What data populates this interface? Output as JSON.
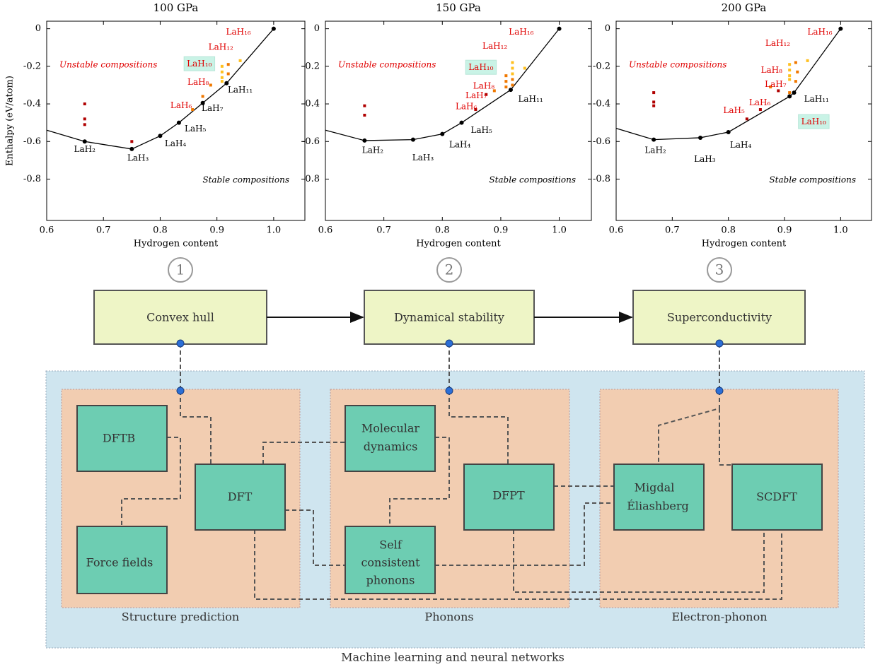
{
  "chart_data": [
    {
      "type": "scatter",
      "title": "100 GPa",
      "xlabel": "Hydrogen content",
      "ylabel": "Enthalpy (eV/atom)",
      "unstable_label": "Unstable compositions",
      "stable_label": "Stable compositions",
      "xlim": [
        0.6,
        1.055
      ],
      "ylim": [
        -1.02,
        0.04
      ],
      "xticks": [
        0.6,
        0.7,
        0.8,
        0.9,
        {
          "value": 1,
          "label": "1.0"
        }
      ],
      "yticks": [
        0,
        -0.2,
        -0.4,
        -0.6,
        -0.8
      ],
      "series": [
        {
          "kind": "line",
          "color": "#000000",
          "x": [
            0.6,
            0.667,
            0.75,
            0.8,
            0.833,
            0.875,
            0.917,
            1
          ],
          "values": [
            -0.54,
            -0.6,
            -0.64,
            -0.57,
            -0.5,
            -0.395,
            -0.29,
            0
          ]
        },
        {
          "kind": "points",
          "color": "#000000",
          "x": [
            0.667,
            0.75,
            0.8,
            0.833,
            0.875,
            0.917,
            1
          ],
          "values": [
            -0.6,
            -0.64,
            -0.57,
            -0.5,
            -0.395,
            -0.29,
            0
          ]
        },
        {
          "kind": "squares",
          "color": "#b00000",
          "x": [
            0.667,
            0.667,
            0.667,
            0.75
          ],
          "values": [
            -0.4,
            -0.48,
            -0.51,
            -0.6
          ]
        },
        {
          "kind": "squares",
          "color": "#f07800",
          "x": [
            0.857,
            0.875,
            0.889,
            0.92,
            0.92
          ],
          "values": [
            -0.43,
            -0.36,
            -0.3,
            -0.24,
            -0.19
          ]
        },
        {
          "kind": "squares",
          "color": "#ffc020",
          "x": [
            0.909,
            0.909,
            0.909,
            0.909,
            0.941
          ],
          "values": [
            -0.2,
            -0.23,
            -0.26,
            -0.28,
            -0.17
          ]
        }
      ],
      "annotations": [
        {
          "text": "LaH₂",
          "x": 0.667,
          "y": -0.643,
          "color": "#000000"
        },
        {
          "text": "LaH₃",
          "x": 0.761,
          "y": -0.69,
          "color": "#000000"
        },
        {
          "text": "LaH₄",
          "x": 0.827,
          "y": -0.613,
          "color": "#000000"
        },
        {
          "text": "LaH₅",
          "x": 0.862,
          "y": -0.534,
          "color": "#000000"
        },
        {
          "text": "LaH₇",
          "x": 0.892,
          "y": -0.425,
          "color": "#000000"
        },
        {
          "text": "LaH₁₁",
          "x": 0.941,
          "y": -0.327,
          "color": "#000000"
        },
        {
          "text": "LaH₆",
          "x": 0.837,
          "y": -0.41,
          "color": "#e00000"
        },
        {
          "text": "LaH₈",
          "x": 0.867,
          "y": -0.286,
          "color": "#e00000"
        },
        {
          "text": "LaH₁₀",
          "x": 0.869,
          "y": -0.188,
          "color": "#e00000",
          "box": "#c9f3e6"
        },
        {
          "text": "LaH₁₂",
          "x": 0.907,
          "y": -0.1,
          "color": "#e00000"
        },
        {
          "text": "LaH₁₆",
          "x": 0.938,
          "y": -0.019,
          "color": "#e00000"
        }
      ]
    },
    {
      "type": "scatter",
      "title": "150 GPa",
      "xlabel": "Hydrogen content",
      "unstable_label": "Unstable compositions",
      "stable_label": "Stable compositions",
      "xlim": [
        0.6,
        1.055
      ],
      "ylim": [
        -1.02,
        0.04
      ],
      "xticks": [
        0.6,
        0.7,
        0.8,
        0.9,
        {
          "value": 1,
          "label": "1.0"
        }
      ],
      "yticks": [
        0,
        -0.2,
        -0.4,
        -0.6,
        -0.8
      ],
      "series": [
        {
          "kind": "line",
          "color": "#000000",
          "x": [
            0.6,
            0.667,
            0.75,
            0.8,
            0.833,
            0.917,
            1
          ],
          "values": [
            -0.54,
            -0.595,
            -0.59,
            -0.56,
            -0.5,
            -0.325,
            0
          ]
        },
        {
          "kind": "points",
          "color": "#000000",
          "x": [
            0.667,
            0.75,
            0.8,
            0.833,
            0.917,
            1
          ],
          "values": [
            -0.595,
            -0.59,
            -0.56,
            -0.5,
            -0.325,
            0
          ]
        },
        {
          "kind": "squares",
          "color": "#b00000",
          "x": [
            0.667,
            0.667,
            0.857,
            0.875
          ],
          "values": [
            -0.41,
            -0.46,
            -0.43,
            -0.35
          ]
        },
        {
          "kind": "squares",
          "color": "#f07800",
          "x": [
            0.889,
            0.909,
            0.909,
            0.909,
            0.92,
            0.92
          ],
          "values": [
            -0.33,
            -0.25,
            -0.28,
            -0.31,
            -0.27,
            -0.3
          ]
        },
        {
          "kind": "squares",
          "color": "#ffc020",
          "x": [
            0.92,
            0.92,
            0.92,
            0.941
          ],
          "values": [
            -0.18,
            -0.21,
            -0.24,
            -0.21
          ]
        }
      ],
      "annotations": [
        {
          "text": "LaH₂",
          "x": 0.681,
          "y": -0.647,
          "color": "#000000"
        },
        {
          "text": "LaH₃",
          "x": 0.767,
          "y": -0.688,
          "color": "#000000"
        },
        {
          "text": "LaH₄",
          "x": 0.83,
          "y": -0.617,
          "color": "#000000"
        },
        {
          "text": "LaH₅",
          "x": 0.867,
          "y": -0.541,
          "color": "#000000"
        },
        {
          "text": "LaH₁₁",
          "x": 0.951,
          "y": -0.376,
          "color": "#000000"
        },
        {
          "text": "LaH₆",
          "x": 0.841,
          "y": -0.414,
          "color": "#e00000"
        },
        {
          "text": "LaH₇",
          "x": 0.858,
          "y": -0.357,
          "color": "#e00000"
        },
        {
          "text": "LaH₈",
          "x": 0.871,
          "y": -0.305,
          "color": "#e00000"
        },
        {
          "text": "LaH₁₀",
          "x": 0.866,
          "y": -0.207,
          "color": "#e00000",
          "box": "#c9f3e6"
        },
        {
          "text": "LaH₁₂",
          "x": 0.89,
          "y": -0.094,
          "color": "#e00000"
        },
        {
          "text": "LaH₁₆",
          "x": 0.935,
          "y": -0.019,
          "color": "#e00000"
        }
      ]
    },
    {
      "type": "scatter",
      "title": "200 GPa",
      "xlabel": "Hydrogen content",
      "unstable_label": "Unstable compositions",
      "stable_label": "Stable compositions",
      "xlim": [
        0.6,
        1.055
      ],
      "ylim": [
        -1.02,
        0.04
      ],
      "xticks": [
        0.6,
        0.7,
        0.8,
        0.9,
        {
          "value": 1,
          "label": "1.0"
        }
      ],
      "yticks": [
        0,
        -0.2,
        -0.4,
        -0.6,
        -0.8
      ],
      "series": [
        {
          "kind": "line",
          "color": "#000000",
          "x": [
            0.6,
            0.667,
            0.75,
            0.8,
            0.909,
            0.917,
            1
          ],
          "values": [
            -0.53,
            -0.59,
            -0.58,
            -0.55,
            -0.36,
            -0.34,
            0
          ]
        },
        {
          "kind": "points",
          "color": "#000000",
          "x": [
            0.667,
            0.75,
            0.8,
            0.909,
            0.917,
            1
          ],
          "values": [
            -0.59,
            -0.58,
            -0.55,
            -0.36,
            -0.34,
            0
          ]
        },
        {
          "kind": "squares",
          "color": "#b00000",
          "x": [
            0.667,
            0.667,
            0.667,
            0.833,
            0.857,
            0.889
          ],
          "values": [
            -0.34,
            -0.39,
            -0.41,
            -0.48,
            -0.43,
            -0.33
          ]
        },
        {
          "kind": "squares",
          "color": "#f07800",
          "x": [
            0.875,
            0.909,
            0.92,
            0.92,
            0.923
          ],
          "values": [
            -0.31,
            -0.34,
            -0.28,
            -0.18,
            -0.23
          ]
        },
        {
          "kind": "squares",
          "color": "#ffc020",
          "x": [
            0.909,
            0.909,
            0.909,
            0.909,
            0.941
          ],
          "values": [
            -0.19,
            -0.22,
            -0.25,
            -0.27,
            -0.17
          ]
        }
      ],
      "annotations": [
        {
          "text": "LaH₂",
          "x": 0.67,
          "y": -0.647,
          "color": "#000000"
        },
        {
          "text": "LaH₃",
          "x": 0.758,
          "y": -0.695,
          "color": "#000000"
        },
        {
          "text": "LaH₄",
          "x": 0.822,
          "y": -0.62,
          "color": "#000000"
        },
        {
          "text": "LaH₁₁",
          "x": 0.957,
          "y": -0.376,
          "color": "#000000"
        },
        {
          "text": "LaH₅",
          "x": 0.81,
          "y": -0.436,
          "color": "#e00000"
        },
        {
          "text": "LaH₆",
          "x": 0.856,
          "y": -0.395,
          "color": "#e00000"
        },
        {
          "text": "LaH₇",
          "x": 0.884,
          "y": -0.297,
          "color": "#e00000"
        },
        {
          "text": "LaH₈",
          "x": 0.877,
          "y": -0.222,
          "color": "#e00000"
        },
        {
          "text": "LaH₁₀",
          "x": 0.952,
          "y": -0.496,
          "color": "#e00000",
          "box": "#c9f3e6"
        },
        {
          "text": "LaH₁₂",
          "x": 0.888,
          "y": -0.079,
          "color": "#e00000"
        },
        {
          "text": "LaH₁₆",
          "x": 0.963,
          "y": -0.019,
          "color": "#e00000"
        }
      ]
    }
  ],
  "diagram": {
    "steps": [
      "1",
      "2",
      "3"
    ],
    "stages": [
      "Convex hull",
      "Dynamical stability",
      "Superconductivity"
    ],
    "groups": [
      {
        "label": "Structure prediction",
        "nodes": [
          [
            "DFTB"
          ],
          [
            "DFT"
          ],
          [
            "Force fields"
          ]
        ]
      },
      {
        "label": "Phonons",
        "nodes": [
          [
            "Molecular",
            "dynamics"
          ],
          [
            "DFPT"
          ],
          [
            "Self",
            "consistent",
            "phonons"
          ]
        ]
      },
      {
        "label": "Electron-phonon",
        "nodes": [
          [
            "Migdal",
            "Éliashberg"
          ],
          [
            "SCDFT"
          ]
        ]
      }
    ],
    "outer_label": "Machine learning and neural networks"
  }
}
